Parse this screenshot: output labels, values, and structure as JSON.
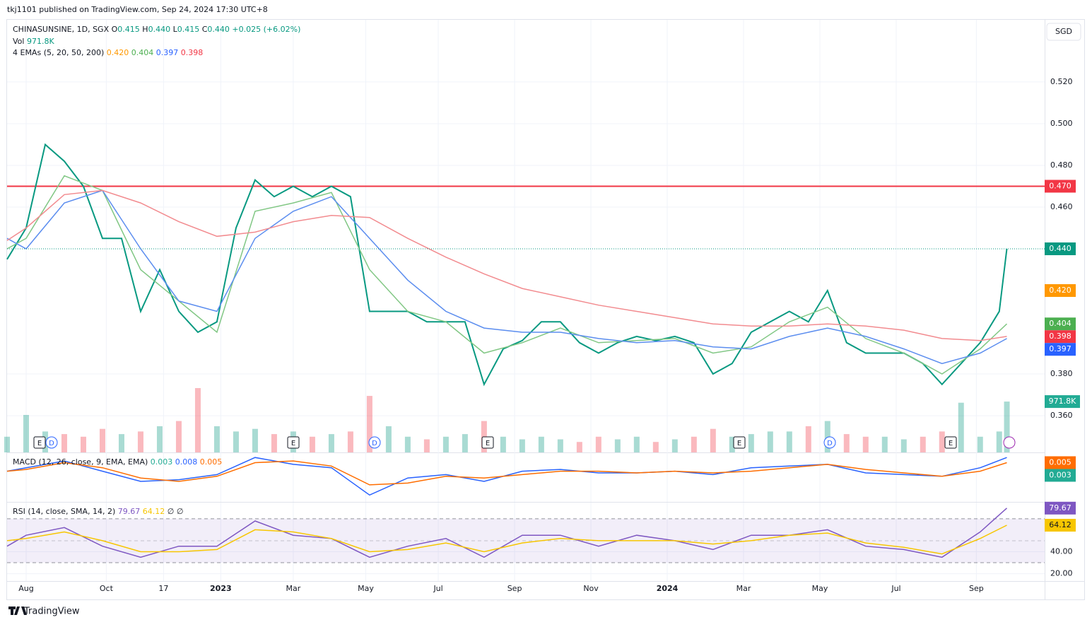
{
  "header": {
    "publisher": "tkj1101 published on TradingView.com, Sep 24, 2024 17:30 UTC+8",
    "currency": "SGD",
    "brand": "TradingView"
  },
  "chart_data": [
    {
      "type": "line",
      "title": "CHINASUNSINE, 1D, SGX",
      "ohlc": [
        [
          "O",
          "0.415"
        ],
        [
          "H",
          "0.440"
        ],
        [
          "L",
          "0.415"
        ],
        [
          "C",
          "0.440"
        ]
      ],
      "change": "+0.025 (+6.02%)",
      "volume_legend": [
        "Vol",
        "971.8K"
      ],
      "legend_title": "4 EMAs (5, 20, 50, 200)",
      "legend_values": [
        {
          "label": "0.420",
          "color": "#ff9800"
        },
        {
          "label": "0.404",
          "color": "#4caf50"
        },
        {
          "label": "0.397",
          "color": "#2962ff"
        },
        {
          "label": "0.398",
          "color": "#f23645"
        }
      ],
      "events": [
        "E",
        "D",
        "E",
        "D",
        "E",
        "E",
        "D",
        "E"
      ],
      "xlim": [
        -0.5,
        26.69
      ],
      "ylim": [
        0.3424,
        0.5498
      ],
      "yticks": [
        {
          "value": 0.36,
          "label": "0.360"
        },
        {
          "value": 0.38,
          "label": "0.380"
        },
        {
          "value": 0.46,
          "label": "0.460"
        },
        {
          "value": 0.48,
          "label": "0.480"
        },
        {
          "value": 0.5,
          "label": "0.500"
        },
        {
          "value": 0.52,
          "label": "0.520"
        }
      ],
      "hlines": [
        {
          "value": 0.47,
          "label": "0.470",
          "color": "#f23645"
        }
      ],
      "price_labels": [
        {
          "value": 0.44,
          "label": "0.440",
          "color": "#089981"
        },
        {
          "value": 0.42,
          "label": "0.420",
          "color": "#ff9800"
        },
        {
          "value": 0.404,
          "label": "0.404",
          "color": "#4caf50"
        },
        {
          "value": 0.398,
          "label": "0.398",
          "color": "#f23645"
        },
        {
          "value": 0.397,
          "label": "0.397",
          "color": "#2962ff"
        }
      ],
      "series": [
        {
          "color": "#089981",
          "x": [
            -0.5,
            0,
            0.5,
            1,
            1.5,
            2,
            2.5,
            3,
            3.5,
            4,
            4.5,
            5,
            5.5,
            6,
            6.5,
            7,
            7.5,
            8,
            8.5,
            9,
            9.5,
            10,
            10.5,
            11,
            11.5,
            12,
            12.5,
            13,
            13.5,
            14,
            14.5,
            15,
            15.5,
            16,
            16.5,
            17,
            17.5,
            18,
            18.5,
            19,
            19.5,
            20,
            20.5,
            21,
            21.5,
            22,
            22.5,
            23,
            23.5,
            24,
            24.5,
            25,
            25.5,
            25.7
          ],
          "values": [
            0.435,
            0.45,
            0.49,
            0.482,
            0.47,
            0.445,
            0.445,
            0.41,
            0.43,
            0.41,
            0.4,
            0.405,
            0.45,
            0.473,
            0.465,
            0.47,
            0.465,
            0.47,
            0.465,
            0.41,
            0.41,
            0.41,
            0.405,
            0.405,
            0.405,
            0.375,
            0.392,
            0.396,
            0.405,
            0.405,
            0.395,
            0.39,
            0.395,
            0.398,
            0.396,
            0.398,
            0.395,
            0.38,
            0.385,
            0.4,
            0.405,
            0.41,
            0.405,
            0.42,
            0.395,
            0.39,
            0.39,
            0.39,
            0.385,
            0.375,
            0.385,
            0.395,
            0.41,
            0.44
          ]
        },
        {
          "color": "#81c784",
          "x": [
            -0.5,
            0,
            1,
            2,
            3,
            4,
            5,
            6,
            7,
            8,
            9,
            10,
            11,
            12,
            13,
            14,
            15,
            16,
            17,
            18,
            19,
            20,
            21,
            22,
            23,
            24,
            25,
            25.7
          ],
          "values": [
            0.44,
            0.445,
            0.475,
            0.468,
            0.43,
            0.415,
            0.4,
            0.458,
            0.462,
            0.467,
            0.43,
            0.41,
            0.405,
            0.39,
            0.395,
            0.402,
            0.395,
            0.396,
            0.397,
            0.39,
            0.393,
            0.405,
            0.412,
            0.397,
            0.39,
            0.38,
            0.392,
            0.404
          ]
        },
        {
          "color": "#5b8def",
          "x": [
            -0.5,
            0,
            1,
            2,
            3,
            4,
            5,
            6,
            7,
            8,
            9,
            10,
            11,
            12,
            13,
            14,
            15,
            16,
            17,
            18,
            19,
            20,
            21,
            22,
            23,
            24,
            25,
            25.7
          ],
          "values": [
            0.445,
            0.44,
            0.462,
            0.468,
            0.44,
            0.415,
            0.41,
            0.445,
            0.458,
            0.465,
            0.445,
            0.425,
            0.41,
            0.402,
            0.4,
            0.4,
            0.397,
            0.395,
            0.396,
            0.393,
            0.392,
            0.398,
            0.402,
            0.398,
            0.392,
            0.385,
            0.39,
            0.397
          ]
        },
        {
          "color": "#f28b8f",
          "x": [
            -0.5,
            0,
            1,
            2,
            3,
            4,
            5,
            6,
            7,
            8,
            9,
            10,
            11,
            12,
            13,
            14,
            15,
            16,
            17,
            18,
            19,
            20,
            21,
            22,
            23,
            24,
            25,
            25.7
          ],
          "values": [
            0.444,
            0.45,
            0.466,
            0.468,
            0.462,
            0.453,
            0.446,
            0.448,
            0.453,
            0.456,
            0.455,
            0.445,
            0.436,
            0.428,
            0.421,
            0.417,
            0.413,
            0.41,
            0.407,
            0.404,
            0.403,
            0.403,
            0.404,
            0.403,
            0.401,
            0.397,
            0.396,
            0.398
          ]
        }
      ],
      "volume": {
        "ylim": [
          0,
          2000000
        ],
        "label": {
          "value": 971800,
          "label": "971.8K",
          "color": "#22ab94"
        },
        "values": [
          300000,
          716000,
          400000,
          350000,
          300000,
          450000,
          350000,
          400000,
          500000,
          600000,
          1230000,
          500000,
          400000,
          450000,
          350000,
          400000,
          300000,
          350000,
          400000,
          1080000,
          500000,
          300000,
          250000,
          300000,
          350000,
          600000,
          300000,
          250000,
          300000,
          250000,
          200000,
          300000,
          250000,
          300000,
          200000,
          250000,
          300000,
          450000,
          300000,
          350000,
          400000,
          400000,
          500000,
          600000,
          350000,
          300000,
          300000,
          250000,
          300000,
          400000,
          950000,
          300000,
          400000,
          971800
        ]
      }
    },
    {
      "type": "line",
      "title": "MACD (12, 26, close, 9, EMA, EMA)",
      "legend_values": [
        {
          "label": "0.003",
          "color": "#22ab94"
        },
        {
          "label": "0.008",
          "color": "#2962ff"
        },
        {
          "label": "0.005",
          "color": "#ff6d00"
        }
      ],
      "xlim": [
        -0.5,
        26.69
      ],
      "ylim": [
        -0.018,
        0.011
      ],
      "price_labels": [
        {
          "value": 0.005,
          "label": "0.005",
          "color": "#ff6d00"
        },
        {
          "value": 0.003,
          "label": "0.003",
          "color": "#22ab94"
        }
      ],
      "series": [
        {
          "color": "#2962ff",
          "x": [
            -0.5,
            0,
            1,
            2,
            3,
            4,
            5,
            6,
            7,
            8,
            9,
            10,
            11,
            12,
            13,
            14,
            15,
            16,
            17,
            18,
            19,
            20,
            21,
            22,
            23,
            24,
            25,
            25.7
          ],
          "values": [
            0.0,
            0.002,
            0.006,
            0.0,
            -0.006,
            -0.005,
            -0.002,
            0.008,
            0.004,
            0.002,
            -0.014,
            -0.004,
            -0.002,
            -0.006,
            0.0,
            0.001,
            -0.001,
            -0.001,
            0.0,
            -0.002,
            0.002,
            0.003,
            0.004,
            -0.001,
            -0.002,
            -0.003,
            0.002,
            0.008
          ]
        },
        {
          "color": "#ff6d00",
          "x": [
            -0.5,
            0,
            1,
            2,
            3,
            4,
            5,
            6,
            7,
            8,
            9,
            10,
            11,
            12,
            13,
            14,
            15,
            16,
            17,
            18,
            19,
            20,
            21,
            22,
            23,
            24,
            25,
            25.7
          ],
          "values": [
            0.0,
            0.001,
            0.005,
            0.002,
            -0.004,
            -0.006,
            -0.003,
            0.005,
            0.006,
            0.003,
            -0.008,
            -0.007,
            -0.003,
            -0.004,
            -0.002,
            0.0,
            0.0,
            -0.001,
            0.0,
            -0.001,
            0.0,
            0.002,
            0.004,
            0.001,
            -0.001,
            -0.003,
            0.0,
            0.005
          ]
        }
      ]
    },
    {
      "type": "line",
      "title": "RSI (14, close, SMA, 14, 2)",
      "extra": "∅ ∅",
      "legend_values": [
        {
          "label": "79.67",
          "color": "#7e57c2"
        },
        {
          "label": "64.12",
          "color": "#f7c600"
        }
      ],
      "xlim": [
        -0.5,
        26.69
      ],
      "ylim": [
        13.3,
        84.7
      ],
      "yticks": [
        {
          "value": 20,
          "label": "20.00"
        },
        {
          "value": 40,
          "label": "40.00"
        }
      ],
      "levels": [
        70,
        50,
        30
      ],
      "price_labels": [
        {
          "value": 79.67,
          "label": "79.67",
          "color": "#7e57c2"
        },
        {
          "value": 64.12,
          "label": "64.12",
          "color": "#f7c600"
        }
      ],
      "xticks": [
        {
          "value": 0,
          "label": "Aug"
        },
        {
          "value": 2.1,
          "label": "Oct"
        },
        {
          "value": 3.6,
          "label": "17"
        },
        {
          "value": 5.1,
          "label": "2023"
        },
        {
          "value": 7,
          "label": "Mar"
        },
        {
          "value": 8.9,
          "label": "May"
        },
        {
          "value": 10.8,
          "label": "Jul"
        },
        {
          "value": 12.8,
          "label": "Sep"
        },
        {
          "value": 14.8,
          "label": "Nov"
        },
        {
          "value": 16.8,
          "label": "2024"
        },
        {
          "value": 18.8,
          "label": "Mar"
        },
        {
          "value": 20.8,
          "label": "May"
        },
        {
          "value": 22.8,
          "label": "Jul"
        },
        {
          "value": 24.9,
          "label": "Sep"
        }
      ],
      "series": [
        {
          "color": "#7e57c2",
          "x": [
            -0.5,
            0,
            1,
            2,
            3,
            4,
            5,
            6,
            7,
            8,
            9,
            10,
            11,
            12,
            13,
            14,
            15,
            16,
            17,
            18,
            19,
            20,
            21,
            22,
            23,
            24,
            25,
            25.7
          ],
          "values": [
            45,
            55,
            62,
            45,
            35,
            45,
            45,
            68,
            55,
            52,
            35,
            45,
            52,
            35,
            55,
            55,
            45,
            55,
            50,
            42,
            55,
            55,
            60,
            45,
            42,
            35,
            58,
            79.67
          ]
        },
        {
          "color": "#f7c600",
          "x": [
            -0.5,
            0,
            1,
            2,
            3,
            4,
            5,
            6,
            7,
            8,
            9,
            10,
            11,
            12,
            13,
            14,
            15,
            16,
            17,
            18,
            19,
            20,
            21,
            22,
            23,
            24,
            25,
            25.7
          ],
          "values": [
            50,
            52,
            58,
            50,
            40,
            40,
            42,
            60,
            58,
            52,
            40,
            42,
            48,
            40,
            48,
            52,
            50,
            50,
            50,
            47,
            50,
            55,
            57,
            48,
            44,
            38,
            52,
            64.12
          ]
        }
      ]
    }
  ]
}
